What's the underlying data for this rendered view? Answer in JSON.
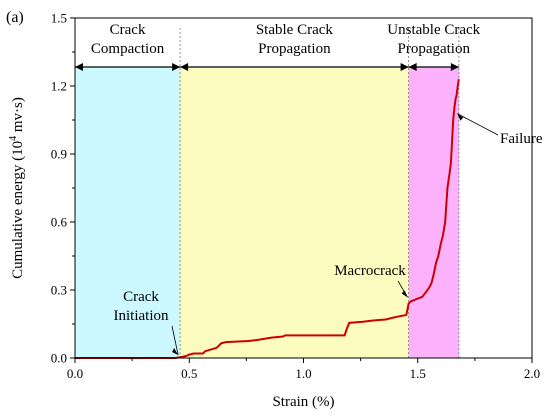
{
  "panel_label": "(a)",
  "chart_data": {
    "type": "line",
    "xlabel": "Strain (%)",
    "ylabel": "Cumulative energy (10",
    "ylabel_sup": "4",
    "ylabel_unit": " mv·s)",
    "xlim": [
      0.0,
      2.0
    ],
    "ylim": [
      0.0,
      1.5
    ],
    "xticks": [
      "0.0",
      "0.5",
      "1.0",
      "1.5",
      "2.0"
    ],
    "yticks": [
      "0.0",
      "0.3",
      "0.6",
      "0.9",
      "1.2",
      "1.5"
    ],
    "xtick_values": [
      0.0,
      0.5,
      1.0,
      1.5,
      2.0
    ],
    "ytick_values": [
      0.0,
      0.3,
      0.6,
      0.9,
      1.2,
      1.5
    ],
    "grid": false,
    "line_color": "#cc0000",
    "phases": [
      {
        "line1": "Crack",
        "line2": "Compaction",
        "x_range": [
          0.0,
          0.46
        ],
        "color": "#ccf8ff"
      },
      {
        "line1": "Stable Crack",
        "line2": "Propagation",
        "x_range": [
          0.46,
          1.46
        ],
        "color": "#fdfcc0"
      },
      {
        "line1": "Unstable Crack",
        "line2": "Propagation",
        "x_range": [
          1.46,
          1.68
        ],
        "color": "#fbb2fb"
      }
    ],
    "annotations": [
      {
        "line1": "Crack",
        "line2": "Initiation",
        "at": [
          0.46,
          0.0
        ]
      },
      {
        "line1": "Macrocrack",
        "line2": "",
        "at": [
          1.46,
          0.25
        ]
      },
      {
        "line1": "Failure",
        "line2": "",
        "at": [
          1.66,
          1.1
        ]
      }
    ],
    "series": [
      {
        "x": [
          0.0,
          0.44,
          0.47,
          0.49,
          0.5,
          0.52,
          0.56,
          0.57,
          0.62,
          0.63,
          0.64,
          0.66,
          0.76,
          0.8,
          0.86,
          0.91,
          0.92,
          1.0,
          1.18,
          1.19,
          1.2,
          1.26,
          1.3,
          1.36,
          1.4,
          1.45,
          1.46,
          1.47,
          1.52,
          1.55,
          1.56,
          1.57,
          1.58,
          1.59,
          1.6,
          1.61,
          1.62,
          1.63,
          1.64,
          1.645,
          1.65,
          1.655,
          1.66,
          1.665,
          1.67,
          1.675,
          1.68
        ],
        "y": [
          0.0,
          0.0,
          0.005,
          0.01,
          0.015,
          0.02,
          0.02,
          0.03,
          0.045,
          0.055,
          0.065,
          0.07,
          0.075,
          0.08,
          0.09,
          0.095,
          0.1,
          0.1,
          0.1,
          0.13,
          0.155,
          0.16,
          0.165,
          0.17,
          0.18,
          0.19,
          0.24,
          0.25,
          0.27,
          0.31,
          0.33,
          0.37,
          0.42,
          0.45,
          0.5,
          0.54,
          0.6,
          0.75,
          0.82,
          0.86,
          0.95,
          1.05,
          1.1,
          1.14,
          1.16,
          1.2,
          1.23
        ]
      }
    ]
  }
}
